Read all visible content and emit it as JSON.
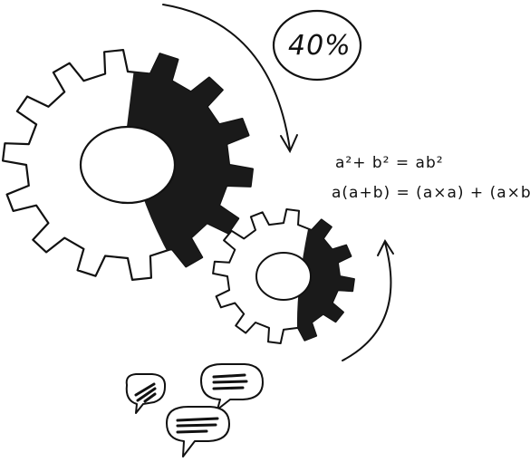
{
  "annotation": {
    "percent": "40%"
  },
  "formulas": [
    "a²+ b² = ab²",
    "a(a+b) = (a×a) + (a×b)"
  ],
  "colors": {
    "ink": "#111111",
    "paper": "#ffffff"
  },
  "icons": [
    "gear-icon",
    "speech-bubble-icon",
    "curved-arrow-icon"
  ]
}
